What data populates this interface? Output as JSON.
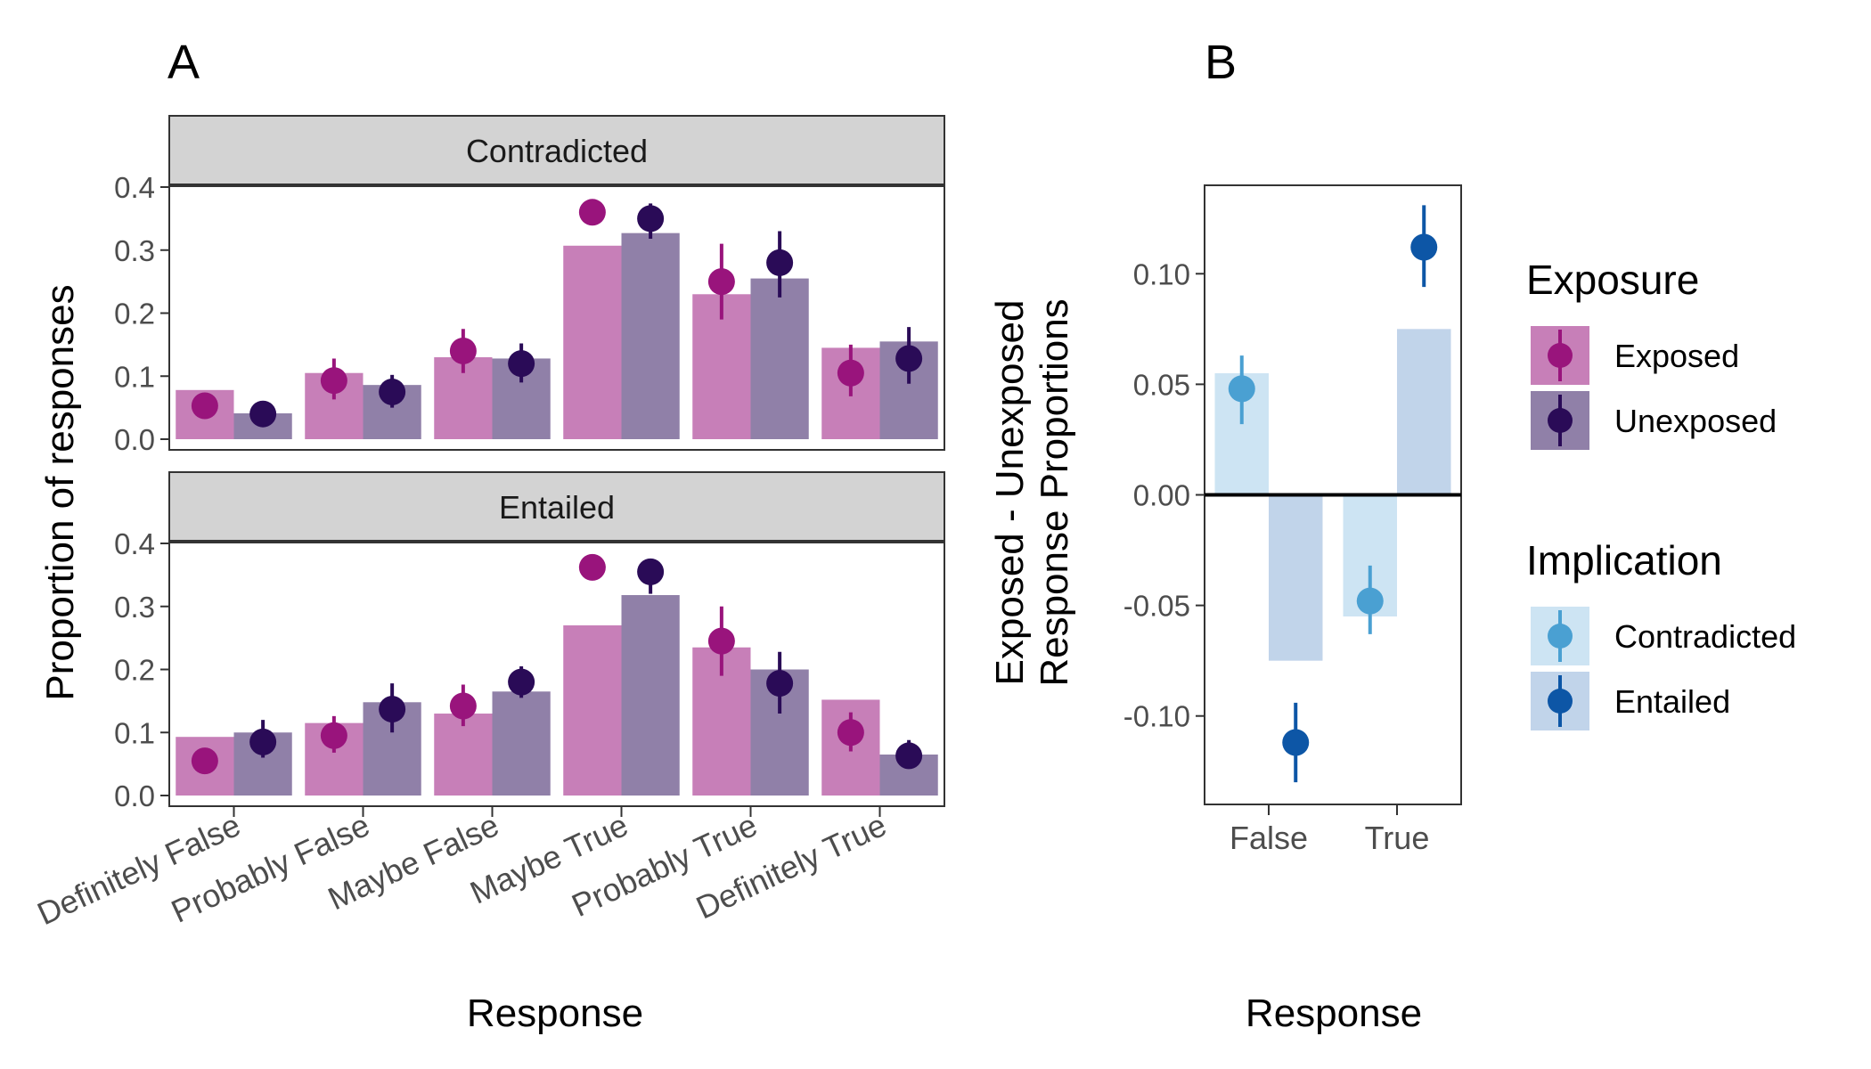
{
  "panels": {
    "a_label": "A",
    "b_label": "B"
  },
  "colors": {
    "exposed_point": "#99147c",
    "unexposed_point": "#2a0b57",
    "exposed_bar": "#c77fb8",
    "unexposed_bar": "#9080a8",
    "contradicted_point": "#4aa0d2",
    "entailed_point": "#0d56a6",
    "contradicted_bar": "#cde4f3",
    "entailed_bar": "#c1d4ea",
    "strip": "#d3d3d3",
    "axis": "#333333",
    "zero_line": "#000000"
  },
  "legend": {
    "exposure_title": "Exposure",
    "exposure_items": [
      "Exposed",
      "Unexposed"
    ],
    "implication_title": "Implication",
    "implication_items": [
      "Contradicted",
      "Entailed"
    ]
  },
  "chart_data": [
    {
      "type": "bar",
      "panel": "A",
      "title": "",
      "xlabel": "Response",
      "ylabel": "Proportion of responses",
      "ylim": [
        0,
        0.4
      ],
      "yticks": [
        "0.0",
        "0.1",
        "0.2",
        "0.3",
        "0.4"
      ],
      "categories": [
        "Definitely False",
        "Probably False",
        "Maybe False",
        "Maybe True",
        "Probably True",
        "Definitely True"
      ],
      "grid": false,
      "legend": "right",
      "facets": [
        {
          "label": "Contradicted",
          "series": [
            {
              "name": "Exposed",
              "bar_values": [
                0.078,
                0.105,
                0.13,
                0.307,
                0.23,
                0.145
              ],
              "point_values": [
                0.053,
                0.093,
                0.14,
                0.36,
                0.25,
                0.105
              ],
              "error_low": [
                0.04,
                0.063,
                0.105,
                0.34,
                0.19,
                0.068
              ],
              "error_high": [
                0.066,
                0.128,
                0.175,
                0.378,
                0.31,
                0.15
              ]
            },
            {
              "name": "Unexposed",
              "bar_values": [
                0.041,
                0.086,
                0.128,
                0.327,
                0.255,
                0.155
              ],
              "point_values": [
                0.04,
                0.075,
                0.12,
                0.35,
                0.28,
                0.128
              ],
              "error_low": [
                0.03,
                0.05,
                0.09,
                0.318,
                0.225,
                0.088
              ],
              "error_high": [
                0.05,
                0.102,
                0.152,
                0.374,
                0.33,
                0.178
              ]
            }
          ]
        },
        {
          "label": "Entailed",
          "series": [
            {
              "name": "Exposed",
              "bar_values": [
                0.093,
                0.115,
                0.13,
                0.27,
                0.235,
                0.152
              ],
              "point_values": [
                0.055,
                0.095,
                0.142,
                0.362,
                0.245,
                0.1
              ],
              "error_low": [
                0.04,
                0.068,
                0.11,
                0.35,
                0.19,
                0.07
              ],
              "error_high": [
                0.07,
                0.126,
                0.176,
                0.374,
                0.3,
                0.132
              ]
            },
            {
              "name": "Unexposed",
              "bar_values": [
                0.1,
                0.148,
                0.165,
                0.318,
                0.2,
                0.065
              ],
              "point_values": [
                0.085,
                0.137,
                0.18,
                0.355,
                0.178,
                0.063
              ],
              "error_low": [
                0.06,
                0.1,
                0.155,
                0.32,
                0.13,
                0.048
              ],
              "error_high": [
                0.12,
                0.178,
                0.205,
                0.37,
                0.228,
                0.088
              ]
            }
          ]
        }
      ]
    },
    {
      "type": "bar",
      "panel": "B",
      "title": "",
      "xlabel": "Response",
      "ylabel_line1": "Exposed - Unexposed",
      "ylabel_line2": "Response Proportions",
      "ylim": [
        -0.14,
        0.14
      ],
      "yticks": [
        {
          "value": 0.1,
          "label": "0.10"
        },
        {
          "value": 0.05,
          "label": "0.05"
        },
        {
          "value": 0,
          "label": "0.00"
        },
        {
          "value": -0.05,
          "label": "-0.05"
        },
        {
          "value": -0.1,
          "label": "-0.10"
        }
      ],
      "categories": [
        "False",
        "True"
      ],
      "grid": false,
      "legend": "right",
      "series": [
        {
          "name": "Contradicted",
          "bar_values": [
            0.055,
            -0.055
          ],
          "point_values": [
            0.048,
            -0.048
          ],
          "error_low": [
            0.032,
            -0.063
          ],
          "error_high": [
            0.063,
            -0.032
          ]
        },
        {
          "name": "Entailed",
          "bar_values": [
            -0.075,
            0.075
          ],
          "point_values": [
            -0.112,
            0.112
          ],
          "error_low": [
            -0.13,
            0.094
          ],
          "error_high": [
            -0.094,
            0.131
          ]
        }
      ]
    }
  ]
}
